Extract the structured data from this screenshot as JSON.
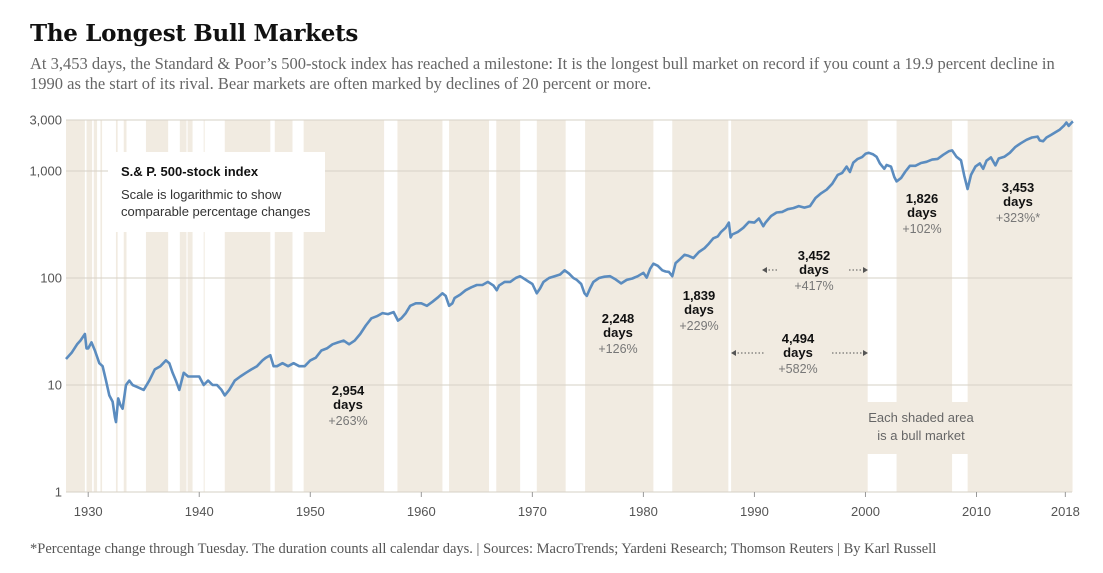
{
  "header": {
    "title": "The Longest Bull Markets",
    "subtitle": "At 3,453 days, the Standard & Poor’s 500-stock index has reached a milestone: It is the longest bull market on record if you count a 19.9 percent decline in 1990 as the start of its rival. Bear markets are often marked by declines of 20 percent or more."
  },
  "footer": {
    "text": "*Percentage change through Tuesday. The duration counts all calendar days. | Sources: MacroTrends; Yardeni Research; Thomson Reuters | By Karl Russell"
  },
  "colors": {
    "line": "#5b8cbf",
    "shade": "#f1ebe1",
    "grid": "#d6d0c6"
  },
  "chart_data": {
    "type": "line",
    "title": "S.& P. 500-stock index",
    "legend_note": [
      "Scale is logarithmic to show",
      "comparable percentage changes"
    ],
    "y_scale": "log",
    "ylim": [
      1,
      3000
    ],
    "y_ticks": [
      {
        "value": 3000,
        "label": "3,000"
      },
      {
        "value": 1000,
        "label": "1,000"
      },
      {
        "value": 100,
        "label": "100"
      },
      {
        "value": 10,
        "label": "10"
      },
      {
        "value": 1,
        "label": "1"
      }
    ],
    "xlim": [
      1928,
      2018.6
    ],
    "x_ticks": [
      {
        "value": 1930,
        "label": "1930"
      },
      {
        "value": 1940,
        "label": "1940"
      },
      {
        "value": 1950,
        "label": "1950"
      },
      {
        "value": 1960,
        "label": "1960"
      },
      {
        "value": 1970,
        "label": "1970"
      },
      {
        "value": 1980,
        "label": "1980"
      },
      {
        "value": 1990,
        "label": "1990"
      },
      {
        "value": 2000,
        "label": "2000"
      },
      {
        "value": 2010,
        "label": "2010"
      },
      {
        "value": 2018,
        "label": "2018"
      }
    ],
    "series": [
      {
        "points": [
          [
            1928.0,
            17.5
          ],
          [
            1928.5,
            20
          ],
          [
            1929.0,
            24
          ],
          [
            1929.3,
            26
          ],
          [
            1929.7,
            30
          ],
          [
            1929.85,
            22
          ],
          [
            1930.0,
            22
          ],
          [
            1930.3,
            25
          ],
          [
            1930.6,
            21
          ],
          [
            1931.0,
            16
          ],
          [
            1931.3,
            15
          ],
          [
            1931.6,
            11
          ],
          [
            1931.9,
            8
          ],
          [
            1932.2,
            7
          ],
          [
            1932.4,
            5
          ],
          [
            1932.5,
            4.5
          ],
          [
            1932.7,
            7.5
          ],
          [
            1932.9,
            6.5
          ],
          [
            1933.1,
            6
          ],
          [
            1933.4,
            10
          ],
          [
            1933.7,
            11
          ],
          [
            1934.0,
            10
          ],
          [
            1934.5,
            9.5
          ],
          [
            1935.0,
            9
          ],
          [
            1935.5,
            11
          ],
          [
            1936.0,
            14
          ],
          [
            1936.5,
            15
          ],
          [
            1937.0,
            17
          ],
          [
            1937.3,
            16
          ],
          [
            1937.6,
            13
          ],
          [
            1937.9,
            11
          ],
          [
            1938.2,
            9
          ],
          [
            1938.6,
            13
          ],
          [
            1939.0,
            12
          ],
          [
            1939.5,
            12
          ],
          [
            1940.0,
            12
          ],
          [
            1940.4,
            10
          ],
          [
            1940.8,
            11
          ],
          [
            1941.2,
            10
          ],
          [
            1941.6,
            10
          ],
          [
            1942.0,
            9
          ],
          [
            1942.3,
            8
          ],
          [
            1942.7,
            9
          ],
          [
            1943.2,
            11
          ],
          [
            1943.7,
            12
          ],
          [
            1944.2,
            13
          ],
          [
            1944.7,
            14
          ],
          [
            1945.2,
            15
          ],
          [
            1945.7,
            17
          ],
          [
            1946.0,
            18
          ],
          [
            1946.4,
            19
          ],
          [
            1946.7,
            15
          ],
          [
            1947.0,
            15
          ],
          [
            1947.5,
            16
          ],
          [
            1948.0,
            15
          ],
          [
            1948.5,
            16
          ],
          [
            1949.0,
            15
          ],
          [
            1949.5,
            15
          ],
          [
            1950.0,
            17
          ],
          [
            1950.5,
            18
          ],
          [
            1951.0,
            21
          ],
          [
            1951.5,
            22
          ],
          [
            1952.0,
            24
          ],
          [
            1952.5,
            25
          ],
          [
            1953.0,
            26
          ],
          [
            1953.5,
            24
          ],
          [
            1954.0,
            26
          ],
          [
            1954.5,
            30
          ],
          [
            1955.0,
            36
          ],
          [
            1955.5,
            42
          ],
          [
            1956.0,
            44
          ],
          [
            1956.5,
            47
          ],
          [
            1957.0,
            46
          ],
          [
            1957.5,
            48
          ],
          [
            1957.9,
            40
          ],
          [
            1958.2,
            42
          ],
          [
            1958.6,
            47
          ],
          [
            1959.0,
            55
          ],
          [
            1959.5,
            58
          ],
          [
            1960.0,
            58
          ],
          [
            1960.5,
            55
          ],
          [
            1961.0,
            60
          ],
          [
            1961.5,
            66
          ],
          [
            1961.9,
            72
          ],
          [
            1962.2,
            68
          ],
          [
            1962.5,
            55
          ],
          [
            1962.8,
            58
          ],
          [
            1963.0,
            65
          ],
          [
            1963.5,
            70
          ],
          [
            1964.0,
            77
          ],
          [
            1964.5,
            82
          ],
          [
            1965.0,
            86
          ],
          [
            1965.5,
            86
          ],
          [
            1966.0,
            92
          ],
          [
            1966.5,
            85
          ],
          [
            1966.8,
            77
          ],
          [
            1967.0,
            85
          ],
          [
            1967.5,
            92
          ],
          [
            1968.0,
            92
          ],
          [
            1968.5,
            100
          ],
          [
            1968.9,
            104
          ],
          [
            1969.3,
            98
          ],
          [
            1969.7,
            92
          ],
          [
            1970.0,
            88
          ],
          [
            1970.4,
            72
          ],
          [
            1970.7,
            80
          ],
          [
            1971.0,
            92
          ],
          [
            1971.5,
            100
          ],
          [
            1972.0,
            104
          ],
          [
            1972.5,
            108
          ],
          [
            1972.9,
            118
          ],
          [
            1973.3,
            110
          ],
          [
            1973.7,
            100
          ],
          [
            1974.0,
            96
          ],
          [
            1974.4,
            88
          ],
          [
            1974.7,
            72
          ],
          [
            1974.9,
            68
          ],
          [
            1975.2,
            80
          ],
          [
            1975.5,
            92
          ],
          [
            1976.0,
            100
          ],
          [
            1976.5,
            103
          ],
          [
            1977.0,
            104
          ],
          [
            1977.5,
            97
          ],
          [
            1978.0,
            89
          ],
          [
            1978.5,
            96
          ],
          [
            1979.0,
            99
          ],
          [
            1979.5,
            104
          ],
          [
            1980.0,
            112
          ],
          [
            1980.3,
            101
          ],
          [
            1980.6,
            122
          ],
          [
            1980.9,
            136
          ],
          [
            1981.3,
            130
          ],
          [
            1981.7,
            118
          ],
          [
            1982.0,
            115
          ],
          [
            1982.3,
            114
          ],
          [
            1982.6,
            104
          ],
          [
            1982.9,
            138
          ],
          [
            1983.3,
            150
          ],
          [
            1983.7,
            165
          ],
          [
            1984.0,
            162
          ],
          [
            1984.5,
            154
          ],
          [
            1985.0,
            175
          ],
          [
            1985.5,
            190
          ],
          [
            1985.9,
            210
          ],
          [
            1986.3,
            235
          ],
          [
            1986.7,
            245
          ],
          [
            1987.0,
            270
          ],
          [
            1987.4,
            295
          ],
          [
            1987.7,
            330
          ],
          [
            1987.85,
            240
          ],
          [
            1988.0,
            255
          ],
          [
            1988.5,
            270
          ],
          [
            1989.0,
            295
          ],
          [
            1989.5,
            335
          ],
          [
            1990.0,
            330
          ],
          [
            1990.4,
            360
          ],
          [
            1990.8,
            305
          ],
          [
            1991.0,
            330
          ],
          [
            1991.5,
            380
          ],
          [
            1992.0,
            410
          ],
          [
            1992.5,
            415
          ],
          [
            1993.0,
            440
          ],
          [
            1993.5,
            450
          ],
          [
            1994.0,
            470
          ],
          [
            1994.5,
            455
          ],
          [
            1995.0,
            470
          ],
          [
            1995.5,
            560
          ],
          [
            1996.0,
            620
          ],
          [
            1996.5,
            670
          ],
          [
            1997.0,
            760
          ],
          [
            1997.5,
            920
          ],
          [
            1997.9,
            960
          ],
          [
            1998.3,
            1100
          ],
          [
            1998.6,
            980
          ],
          [
            1998.9,
            1200
          ],
          [
            1999.3,
            1300
          ],
          [
            1999.7,
            1350
          ],
          [
            2000.0,
            1450
          ],
          [
            2000.3,
            1480
          ],
          [
            2000.7,
            1430
          ],
          [
            2001.0,
            1360
          ],
          [
            2001.3,
            1180
          ],
          [
            2001.7,
            1050
          ],
          [
            2001.9,
            1140
          ],
          [
            2002.3,
            1100
          ],
          [
            2002.6,
            880
          ],
          [
            2002.8,
            800
          ],
          [
            2003.2,
            860
          ],
          [
            2003.6,
            990
          ],
          [
            2004.0,
            1120
          ],
          [
            2004.5,
            1120
          ],
          [
            2005.0,
            1190
          ],
          [
            2005.5,
            1220
          ],
          [
            2006.0,
            1280
          ],
          [
            2006.5,
            1300
          ],
          [
            2007.0,
            1420
          ],
          [
            2007.5,
            1530
          ],
          [
            2007.8,
            1560
          ],
          [
            2008.2,
            1360
          ],
          [
            2008.6,
            1260
          ],
          [
            2008.9,
            900
          ],
          [
            2009.2,
            680
          ],
          [
            2009.5,
            920
          ],
          [
            2009.9,
            1100
          ],
          [
            2010.3,
            1180
          ],
          [
            2010.6,
            1050
          ],
          [
            2010.9,
            1250
          ],
          [
            2011.3,
            1340
          ],
          [
            2011.7,
            1130
          ],
          [
            2012.0,
            1310
          ],
          [
            2012.5,
            1360
          ],
          [
            2013.0,
            1480
          ],
          [
            2013.5,
            1680
          ],
          [
            2014.0,
            1820
          ],
          [
            2014.5,
            1960
          ],
          [
            2015.0,
            2060
          ],
          [
            2015.5,
            2100
          ],
          [
            2015.7,
            1930
          ],
          [
            2016.0,
            1900
          ],
          [
            2016.3,
            2060
          ],
          [
            2016.7,
            2170
          ],
          [
            2017.0,
            2270
          ],
          [
            2017.5,
            2440
          ],
          [
            2017.9,
            2670
          ],
          [
            2018.1,
            2840
          ],
          [
            2018.3,
            2640
          ],
          [
            2018.6,
            2860
          ],
          [
            2018.7,
            2900
          ]
        ]
      }
    ],
    "bull_markets": [
      [
        1928.0,
        1929.7
      ],
      [
        1929.85,
        1930.35
      ],
      [
        1930.5,
        1930.8
      ],
      [
        1931.1,
        1931.25
      ],
      [
        1932.5,
        1932.65
      ],
      [
        1933.2,
        1933.45
      ],
      [
        1935.2,
        1937.2
      ],
      [
        1938.25,
        1938.85
      ],
      [
        1938.95,
        1939.4
      ],
      [
        1940.4,
        1940.45
      ],
      [
        1942.3,
        1946.4
      ],
      [
        1946.8,
        1948.4
      ],
      [
        1949.4,
        1956.65
      ],
      [
        1957.85,
        1961.9
      ],
      [
        1962.5,
        1966.1
      ],
      [
        1966.75,
        1968.9
      ],
      [
        1970.4,
        1973.0
      ],
      [
        1974.75,
        1980.9
      ],
      [
        1982.6,
        1987.65
      ],
      [
        1987.9,
        2000.2
      ],
      [
        2002.8,
        2007.8
      ],
      [
        2009.2,
        2018.65
      ]
    ],
    "annotations": [
      {
        "days": "2,954",
        "unit": "days",
        "pct": "+263%"
      },
      {
        "days": "2,248",
        "unit": "days",
        "pct": "+126%"
      },
      {
        "days": "1,839",
        "unit": "days",
        "pct": "+229%"
      },
      {
        "days": "3,452",
        "unit": "days",
        "pct": "+417%"
      },
      {
        "days": "4,494",
        "unit": "days",
        "pct": "+582%"
      },
      {
        "days": "1,826",
        "unit": "days",
        "pct": "+102%"
      },
      {
        "days": "3,453",
        "unit": "days",
        "pct": "+323%*"
      }
    ],
    "shade_note": [
      "Each shaded area",
      "is a bull market"
    ]
  }
}
